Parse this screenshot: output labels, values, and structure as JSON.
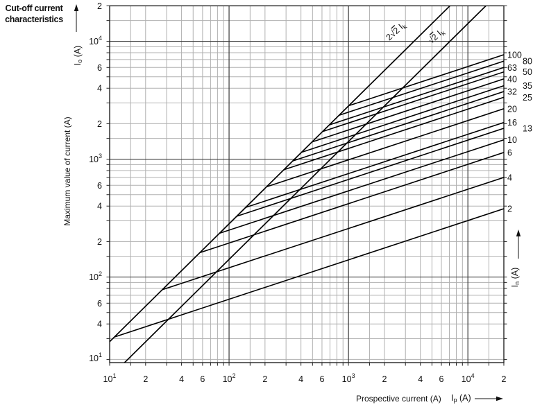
{
  "header": {
    "title_line1": "Cut-off current",
    "title_line2": "characteristics"
  },
  "colors": {
    "background": "#ffffff",
    "curve": "#000000",
    "grid_minor": "#b0b0b0",
    "grid_major": "#3a3a3a",
    "border": "#222222",
    "text": "#111111"
  },
  "chart_data": {
    "type": "line",
    "title": "Cut-off current characteristics",
    "x_scale": "log",
    "y_scale": "log",
    "xlim": [
      10,
      20000
    ],
    "ylim": [
      10,
      20000
    ],
    "grid": "log major and minor gridlines on",
    "legend_position": "right edge curve labels",
    "x_axis": {
      "label": "Prospective current (A)",
      "symbol": "I",
      "symbol_sub": "p",
      "symbol_unit": "(A)"
    },
    "y_axis": {
      "label": "Maximum value of current (A)",
      "symbol": "I",
      "symbol_sub": "o",
      "symbol_unit": "(A)"
    },
    "right_axis": {
      "symbol": "I",
      "symbol_sub": "n",
      "symbol_unit": "(A)"
    },
    "x_ticks": [
      {
        "value": 10,
        "base": "10",
        "exp": "1"
      },
      {
        "value": 20,
        "label": "2"
      },
      {
        "value": 40,
        "label": "4"
      },
      {
        "value": 60,
        "label": "6"
      },
      {
        "value": 100,
        "base": "10",
        "exp": "2"
      },
      {
        "value": 200,
        "label": "2"
      },
      {
        "value": 400,
        "label": "4"
      },
      {
        "value": 600,
        "label": "6"
      },
      {
        "value": 1000,
        "base": "10",
        "exp": "3"
      },
      {
        "value": 2000,
        "label": "2"
      },
      {
        "value": 4000,
        "label": "4"
      },
      {
        "value": 6000,
        "label": "6"
      },
      {
        "value": 10000,
        "base": "10",
        "exp": "4"
      },
      {
        "value": 20000,
        "label": "2"
      }
    ],
    "y_ticks": [
      {
        "value": 20000,
        "label": "2"
      },
      {
        "value": 10000,
        "base": "10",
        "exp": "4"
      },
      {
        "value": 6000,
        "label": "6"
      },
      {
        "value": 4000,
        "label": "4"
      },
      {
        "value": 2000,
        "label": "2"
      },
      {
        "value": 1000,
        "base": "10",
        "exp": "3"
      },
      {
        "value": 600,
        "label": "6"
      },
      {
        "value": 400,
        "label": "4"
      },
      {
        "value": 200,
        "label": "2"
      },
      {
        "value": 100,
        "base": "10",
        "exp": "2"
      },
      {
        "value": 60,
        "label": "6"
      },
      {
        "value": 40,
        "label": "4"
      },
      {
        "value": 10,
        "base": "10",
        "exp": "1"
      }
    ],
    "asymptote_lines": [
      {
        "label": "2√2 Ik",
        "prefix": "2",
        "radicand": "2",
        "symbol": "I",
        "symbol_sub": "k",
        "points": [
          [
            10,
            28.3
          ],
          [
            7071,
            20000
          ]
        ],
        "label_pos": [
          573,
          48
        ],
        "label_angle": -42
      },
      {
        "label": "√2 Ik",
        "prefix": "",
        "radicand": "2",
        "symbol": "I",
        "symbol_sub": "k",
        "points": [
          [
            10,
            14.1
          ],
          [
            14142,
            20000
          ]
        ],
        "label_pos": [
          631,
          55
        ],
        "label_angle": -42
      }
    ],
    "series": [
      {
        "rating": "100",
        "column": 1,
        "points": [
          [
            1004,
            2839
          ],
          [
            20000,
            7700
          ]
        ]
      },
      {
        "rating": "80",
        "column": 2,
        "points": [
          [
            834,
            2359
          ],
          [
            20000,
            6800
          ]
        ]
      },
      {
        "rating": "63",
        "column": 1,
        "points": [
          [
            691,
            1954
          ],
          [
            20000,
            6000
          ]
        ]
      },
      {
        "rating": "50",
        "column": 2,
        "points": [
          [
            607,
            1716
          ],
          [
            20000,
            5500
          ]
        ]
      },
      {
        "rating": "40",
        "column": 1,
        "points": [
          [
            495,
            1400
          ],
          [
            20000,
            4800
          ]
        ]
      },
      {
        "rating": "35",
        "column": 2,
        "points": [
          [
            405,
            1145
          ],
          [
            20000,
            4200
          ]
        ]
      },
      {
        "rating": "32",
        "column": 1,
        "points": [
          [
            342,
            967
          ],
          [
            20000,
            3750
          ]
        ]
      },
      {
        "rating": "25",
        "column": 2,
        "points": [
          [
            288,
            814
          ],
          [
            20000,
            3350
          ]
        ]
      },
      {
        "rating": "20",
        "column": 1,
        "points": [
          [
            206,
            583
          ],
          [
            20000,
            2680
          ]
        ]
      },
      {
        "rating": "16",
        "column": 1,
        "points": [
          [
            138,
            390
          ],
          [
            20000,
            2050
          ]
        ]
      },
      {
        "rating": "13",
        "column": 2,
        "points": [
          [
            116,
            328
          ],
          [
            20000,
            1830
          ]
        ]
      },
      {
        "rating": "10",
        "column": 1,
        "points": [
          [
            83,
            235
          ],
          [
            20000,
            1460
          ]
        ]
      },
      {
        "rating": "6",
        "column": 1,
        "points": [
          [
            57,
            161
          ],
          [
            20000,
            1140
          ]
        ]
      },
      {
        "rating": "4",
        "column": 1,
        "points": [
          [
            27.5,
            78
          ],
          [
            20000,
            700
          ]
        ]
      },
      {
        "rating": "2",
        "column": 1,
        "points": [
          [
            11,
            31
          ],
          [
            20000,
            380
          ]
        ]
      }
    ]
  }
}
